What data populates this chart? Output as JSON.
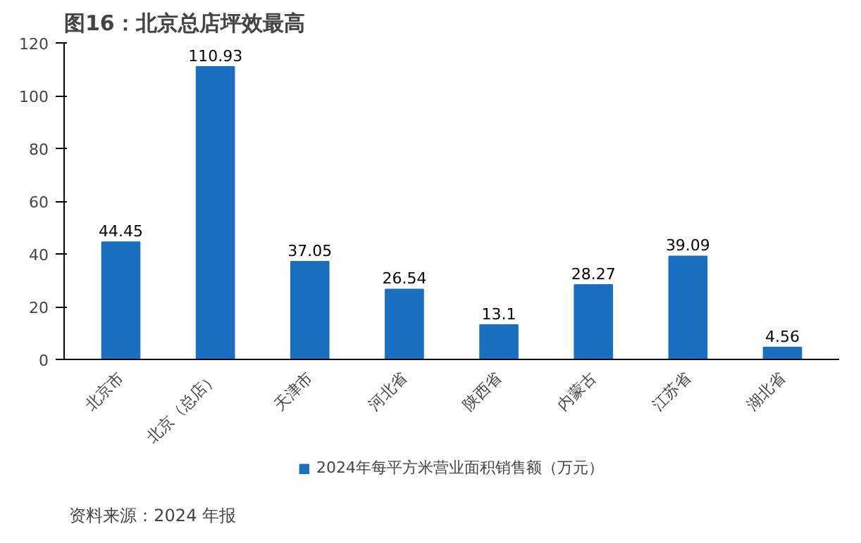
{
  "chart_data": {
    "type": "bar",
    "title": "图16：北京总店坪效最高",
    "categories": [
      "北京市",
      "北京（总店）",
      "天津市",
      "河北省",
      "陕西省",
      "内蒙古",
      "江苏省",
      "湖北省"
    ],
    "series": [
      {
        "name": "2024年每平方米营业面积销售额（万元）",
        "color": "#1a6fc0",
        "values": [
          44.45,
          110.93,
          37.05,
          26.54,
          13.1,
          28.27,
          39.09,
          4.56
        ]
      }
    ],
    "ylim": [
      0,
      120
    ],
    "yticks": [
      0,
      20,
      40,
      60,
      80,
      100,
      120
    ],
    "grid": false,
    "legend": "bottom",
    "data_labels": true,
    "annotations": [
      "资料来源：2024 年报"
    ]
  }
}
